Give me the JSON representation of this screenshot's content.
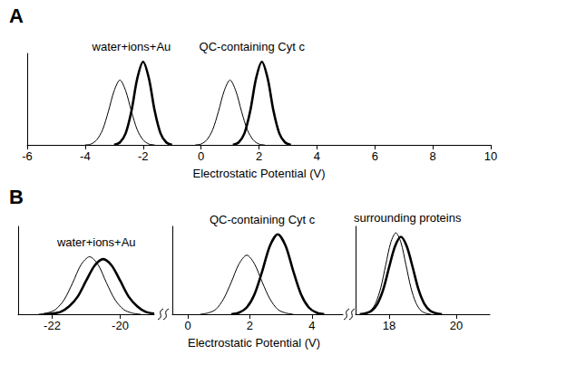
{
  "chart_data": [
    {
      "type": "line",
      "title": "A",
      "xlabel": "Electrostatic Potential (V)",
      "tick_labels": "x",
      "grid": false,
      "ylim": [
        0,
        1.1
      ],
      "segments": [
        {
          "xlim": [
            -6,
            10
          ],
          "xticks": [
            -6,
            -4,
            -2,
            0,
            2,
            4,
            6,
            8,
            10
          ],
          "groups": [
            {
              "label": "water+ions+Au",
              "series": [
                {
                  "line_style": "thin",
                  "color": "#000000",
                  "x": [
                    -4.0,
                    -3.8,
                    -3.6,
                    -3.4,
                    -3.2,
                    -3.0,
                    -2.8,
                    -2.6,
                    -2.4,
                    -2.2,
                    -2.0,
                    -1.8,
                    -1.6
                  ],
                  "values": [
                    0,
                    0.01,
                    0.06,
                    0.18,
                    0.4,
                    0.65,
                    0.78,
                    0.65,
                    0.4,
                    0.18,
                    0.06,
                    0.01,
                    0
                  ]
                },
                {
                  "line_style": "thick",
                  "color": "#000000",
                  "x": [
                    -3.0,
                    -2.8,
                    -2.6,
                    -2.4,
                    -2.2,
                    -2.0,
                    -1.8,
                    -1.6,
                    -1.4,
                    -1.2,
                    -1.0
                  ],
                  "values": [
                    0,
                    0.03,
                    0.14,
                    0.41,
                    0.8,
                    1.0,
                    0.8,
                    0.41,
                    0.14,
                    0.03,
                    0
                  ]
                }
              ]
            },
            {
              "label": "QC-containing Cyt c",
              "series": [
                {
                  "line_style": "thin",
                  "color": "#000000",
                  "x": [
                    -0.2,
                    0.0,
                    0.2,
                    0.4,
                    0.6,
                    0.8,
                    1.0,
                    1.2,
                    1.4,
                    1.6,
                    1.8,
                    2.0,
                    2.2
                  ],
                  "values": [
                    0,
                    0.01,
                    0.06,
                    0.18,
                    0.4,
                    0.65,
                    0.78,
                    0.65,
                    0.4,
                    0.18,
                    0.06,
                    0.01,
                    0
                  ]
                },
                {
                  "line_style": "thick",
                  "color": "#000000",
                  "x": [
                    1.1,
                    1.3,
                    1.5,
                    1.7,
                    1.9,
                    2.1,
                    2.3,
                    2.5,
                    2.7,
                    2.9,
                    3.1
                  ],
                  "values": [
                    0,
                    0.03,
                    0.14,
                    0.41,
                    0.8,
                    1.0,
                    0.8,
                    0.41,
                    0.14,
                    0.03,
                    0
                  ]
                }
              ]
            }
          ]
        }
      ]
    },
    {
      "type": "line",
      "title": "B",
      "xlabel": "Electrostatic Potential (V)",
      "tick_labels": "x",
      "grid": false,
      "ylim": [
        0,
        1.1
      ],
      "segments": [
        {
          "xlim": [
            -23,
            -19
          ],
          "xticks": [
            -22,
            -20
          ],
          "groups": [
            {
              "label": "water+ions+Au",
              "series": [
                {
                  "line_style": "thin",
                  "color": "#000000",
                  "x": [
                    -22.4,
                    -22.15,
                    -21.9,
                    -21.65,
                    -21.4,
                    -21.15,
                    -20.9,
                    -20.65,
                    -20.4,
                    -20.15,
                    -19.9,
                    -19.65,
                    -19.4
                  ],
                  "values": [
                    0,
                    0.015,
                    0.06,
                    0.18,
                    0.39,
                    0.62,
                    0.72,
                    0.62,
                    0.39,
                    0.18,
                    0.06,
                    0.015,
                    0
                  ]
                },
                {
                  "line_style": "thick",
                  "color": "#000000",
                  "x": [
                    -22.25,
                    -22.0,
                    -21.75,
                    -21.5,
                    -21.25,
                    -21.0,
                    -20.75,
                    -20.5,
                    -20.25,
                    -20.0,
                    -19.75,
                    -19.5,
                    -19.25,
                    -19.0
                  ],
                  "values": [
                    0,
                    0.008,
                    0.03,
                    0.1,
                    0.22,
                    0.42,
                    0.61,
                    0.69,
                    0.61,
                    0.42,
                    0.22,
                    0.1,
                    0.03,
                    0.008
                  ]
                }
              ]
            }
          ]
        },
        {
          "xlim": [
            -0.5,
            5
          ],
          "xticks": [
            0,
            2,
            4
          ],
          "groups": [
            {
              "label": "QC-containing Cyt c",
              "series": [
                {
                  "line_style": "thin",
                  "color": "#000000",
                  "x": [
                    0.4,
                    0.65,
                    0.9,
                    1.15,
                    1.4,
                    1.65,
                    1.9,
                    2.15,
                    2.4,
                    2.65,
                    2.9,
                    3.15,
                    3.4
                  ],
                  "values": [
                    0,
                    0.016,
                    0.06,
                    0.19,
                    0.4,
                    0.63,
                    0.74,
                    0.63,
                    0.4,
                    0.19,
                    0.06,
                    0.016,
                    0
                  ]
                },
                {
                  "line_style": "thick",
                  "color": "#000000",
                  "x": [
                    1.4,
                    1.65,
                    1.9,
                    2.15,
                    2.4,
                    2.65,
                    2.9,
                    3.15,
                    3.4,
                    3.65,
                    3.9,
                    4.15,
                    4.4
                  ],
                  "values": [
                    0,
                    0.02,
                    0.085,
                    0.25,
                    0.54,
                    0.86,
                    1.0,
                    0.86,
                    0.54,
                    0.25,
                    0.085,
                    0.02,
                    0
                  ]
                }
              ]
            }
          ]
        },
        {
          "xlim": [
            17,
            21
          ],
          "xticks": [
            18,
            20
          ],
          "groups": [
            {
              "label": "surrounding proteins",
              "series": [
                {
                  "line_style": "thin",
                  "color": "#000000",
                  "x": [
                    17.15,
                    17.3,
                    17.45,
                    17.6,
                    17.75,
                    17.9,
                    18.05,
                    18.2,
                    18.35,
                    18.5,
                    18.65,
                    18.8,
                    18.95,
                    19.1,
                    19.25
                  ],
                  "values": [
                    0,
                    0.011,
                    0.045,
                    0.14,
                    0.33,
                    0.62,
                    0.9,
                    1.02,
                    0.9,
                    0.62,
                    0.33,
                    0.14,
                    0.045,
                    0.011,
                    0
                  ]
                },
                {
                  "line_style": "thick",
                  "color": "#000000",
                  "x": [
                    17.125,
                    17.3,
                    17.475,
                    17.65,
                    17.825,
                    18.0,
                    18.175,
                    18.35,
                    18.525,
                    18.7,
                    18.875,
                    19.05,
                    19.225,
                    19.4,
                    19.575
                  ],
                  "values": [
                    0,
                    0.011,
                    0.043,
                    0.13,
                    0.31,
                    0.59,
                    0.85,
                    0.97,
                    0.85,
                    0.59,
                    0.31,
                    0.13,
                    0.043,
                    0.011,
                    0
                  ]
                }
              ]
            }
          ]
        }
      ]
    }
  ]
}
